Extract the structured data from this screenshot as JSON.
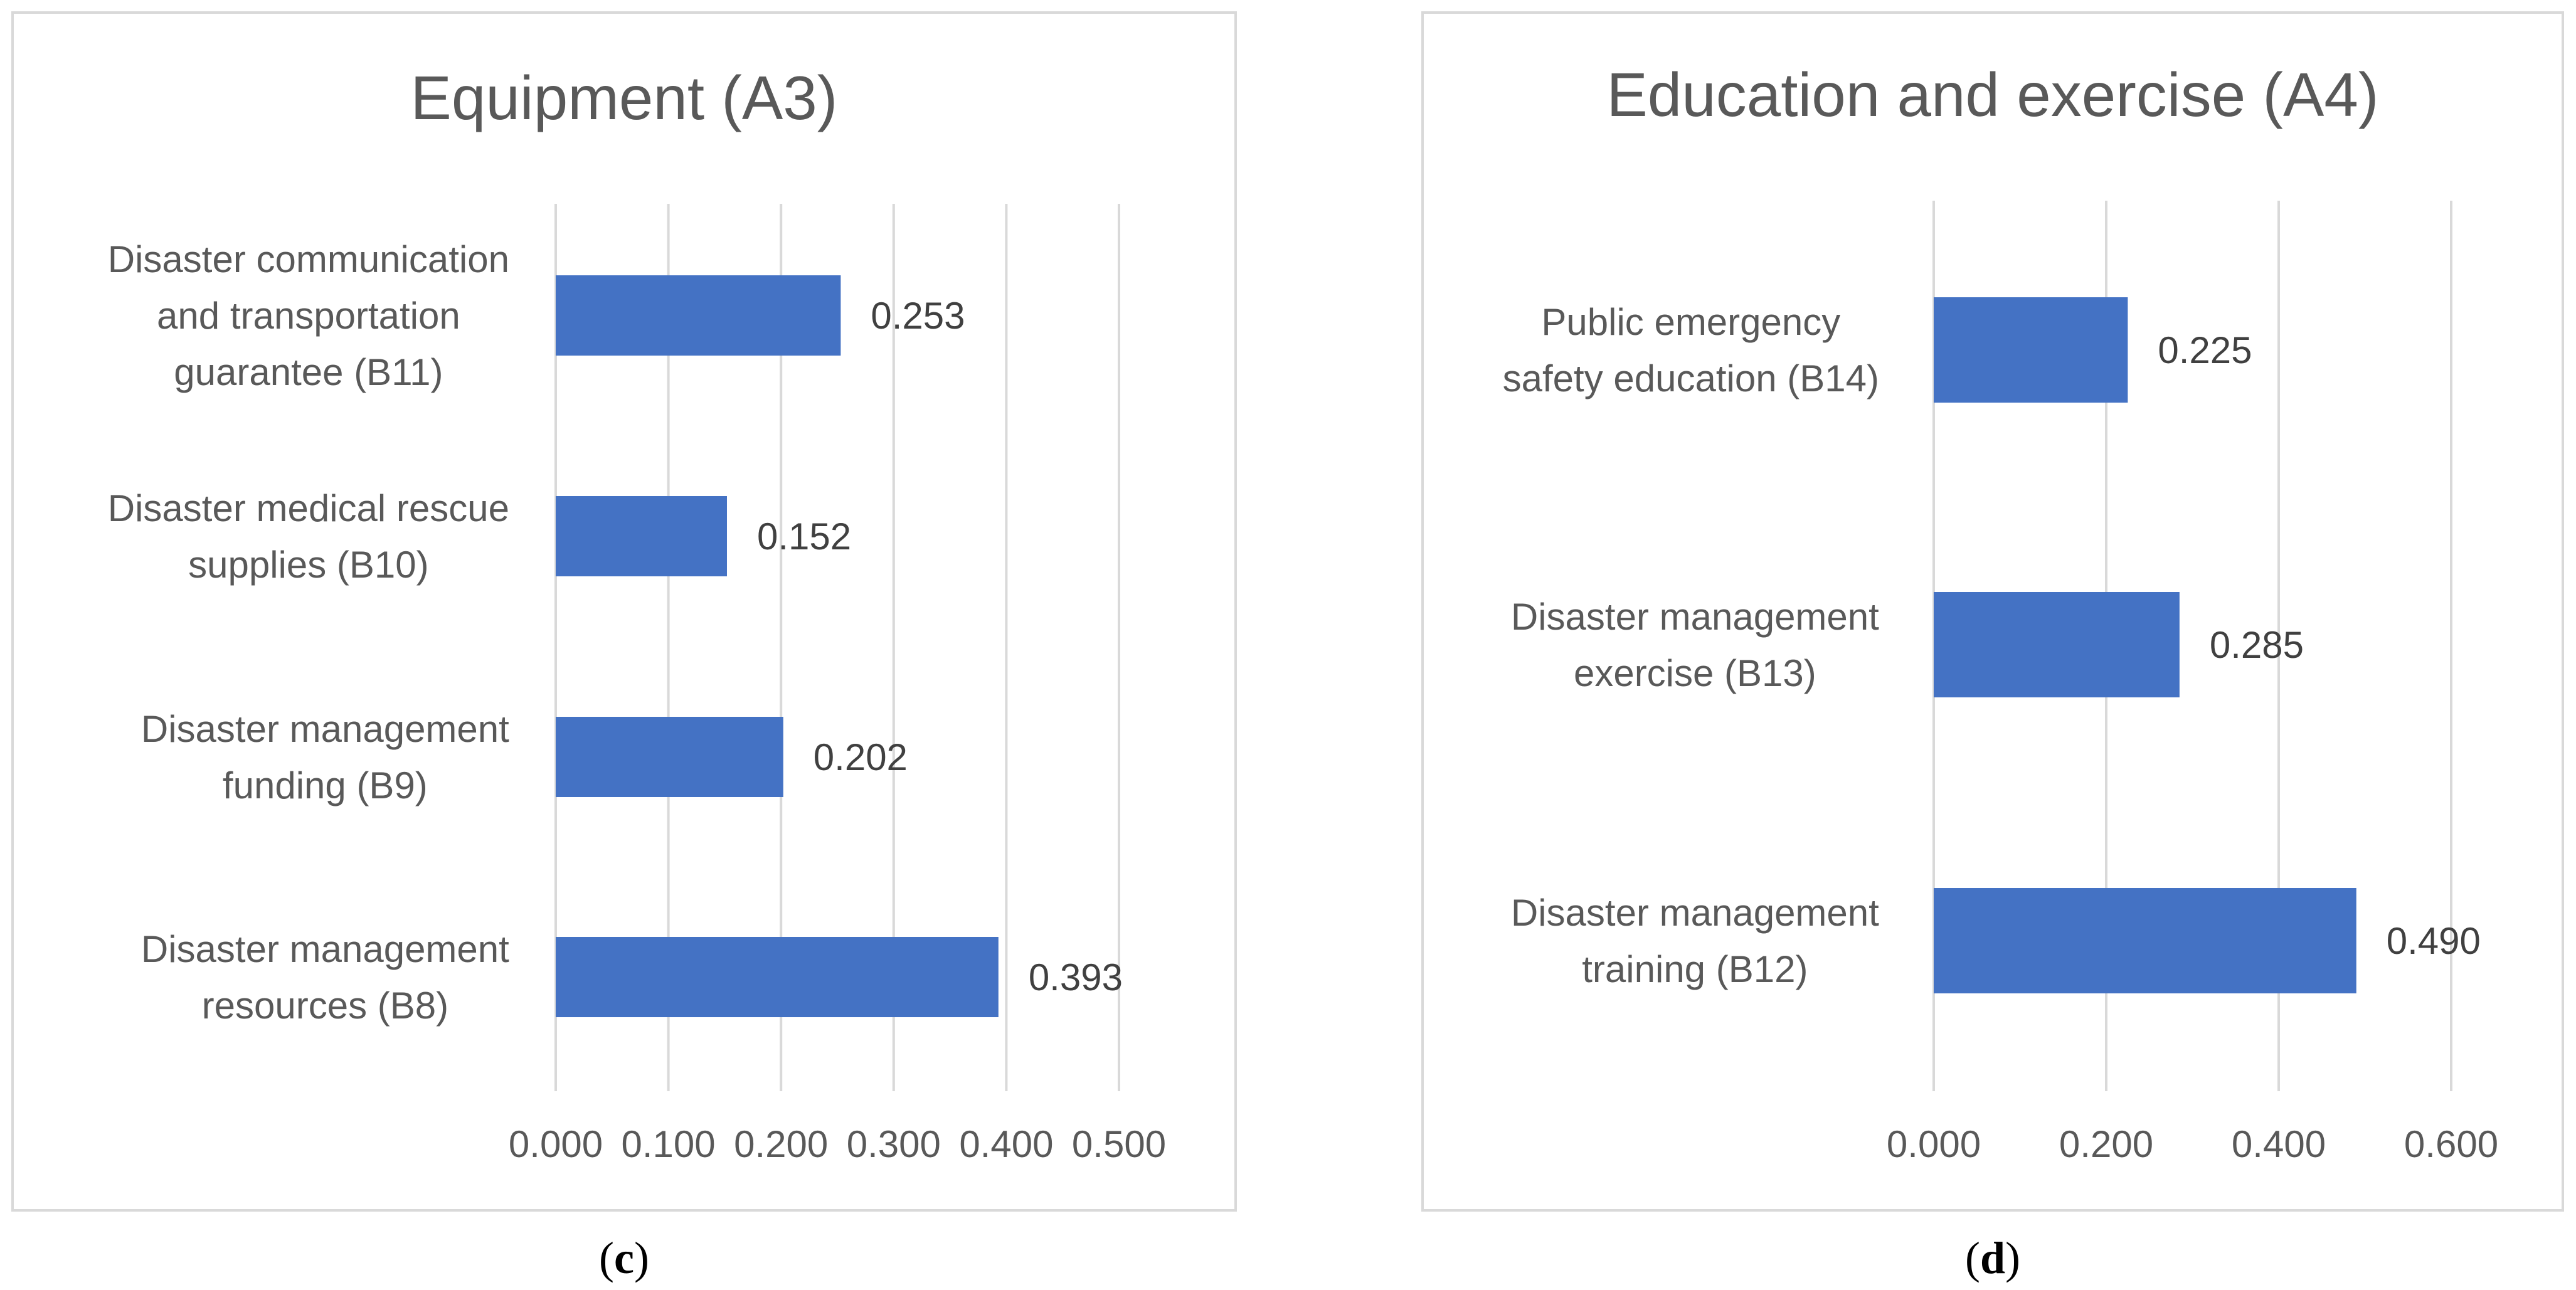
{
  "colors": {
    "bar": "#4472C4",
    "grid": "#D9D9D9",
    "frame": "#D9D9D9",
    "text": "#595959",
    "value_text": "#404040"
  },
  "chart_data": [
    {
      "id": "c",
      "type": "bar",
      "orientation": "horizontal",
      "title": "Equipment (A3)",
      "panel_label": [
        "(",
        "c",
        ")"
      ],
      "categories": [
        [
          "Disaster communication",
          "and transportation",
          "guarantee (B11)"
        ],
        [
          "Disaster medical rescue",
          "supplies (B10)"
        ],
        [
          "Disaster management",
          "funding (B9)"
        ],
        [
          "Disaster  management",
          "resources (B8)"
        ]
      ],
      "values": [
        0.253,
        0.152,
        0.202,
        0.393
      ],
      "value_labels": [
        "0.253",
        "0.152",
        "0.202",
        "0.393"
      ],
      "xlim": [
        0,
        0.5
      ],
      "xticks": [
        0,
        0.1,
        0.2,
        0.3,
        0.4,
        0.5
      ],
      "xtick_labels": [
        "0.000",
        "0.100",
        "0.200",
        "0.300",
        "0.400",
        "0.500"
      ],
      "grid": true,
      "legend": "none"
    },
    {
      "id": "d",
      "type": "bar",
      "orientation": "horizontal",
      "title": "Education and exercise (A4)",
      "panel_label": [
        "(",
        "d",
        ")"
      ],
      "categories": [
        [
          "Public emergency",
          "safety education (B14)"
        ],
        [
          "Disaster management",
          "exercise (B13)"
        ],
        [
          "Disaster management",
          "training (B12)"
        ]
      ],
      "values": [
        0.225,
        0.285,
        0.49
      ],
      "value_labels": [
        "0.225",
        "0.285",
        "0.490"
      ],
      "xlim": [
        0,
        0.6
      ],
      "xticks": [
        0,
        0.2,
        0.4,
        0.6
      ],
      "xtick_labels": [
        "0.000",
        "0.200",
        "0.400",
        "0.600"
      ],
      "grid": true,
      "legend": "none"
    }
  ]
}
